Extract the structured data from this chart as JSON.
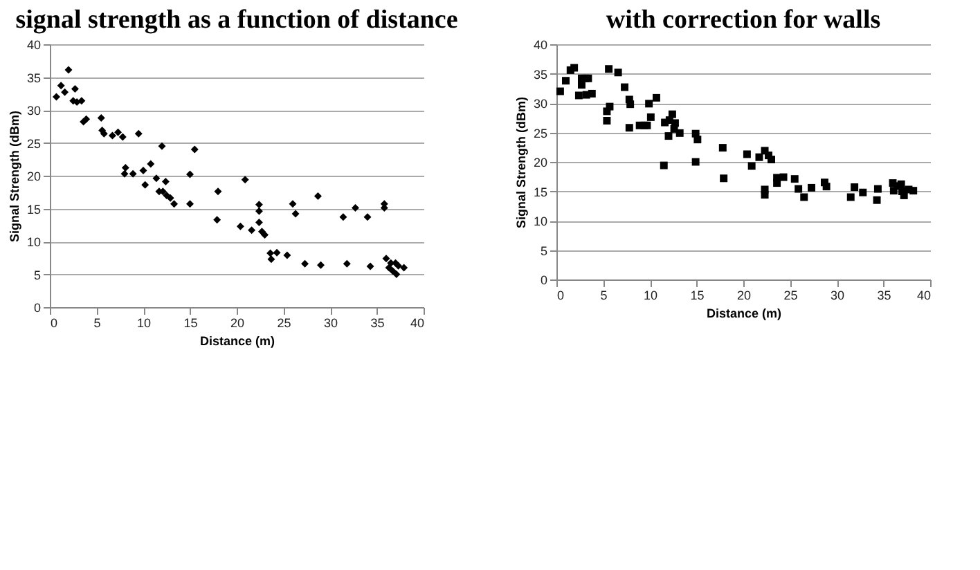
{
  "chart_data": [
    {
      "type": "scatter",
      "title": "signal strength as a function of distance",
      "xlabel": "Distance (m)",
      "ylabel": "Signal Strength (dBm)",
      "xlim": [
        0,
        40
      ],
      "xticks": [
        0,
        5,
        10,
        15,
        20,
        25,
        30,
        35,
        40
      ],
      "ylim": [
        0,
        40
      ],
      "yticks": [
        0,
        5,
        10,
        15,
        20,
        25,
        30,
        35,
        40
      ],
      "grid": "y",
      "marker": "diamond",
      "series": [
        {
          "color": "#000000",
          "x": [
            0.7,
            1.2,
            1.6,
            2.0,
            2.7,
            2.5,
            2.9,
            3.4,
            3.6,
            3.9,
            5.5,
            5.6,
            5.8,
            6.7,
            7.3,
            7.8,
            9.5,
            8.1,
            8.0,
            8.9,
            10.0,
            10.2,
            10.8,
            11.4,
            12.0,
            11.7,
            12.1,
            12.4,
            12.5,
            12.9,
            13.3,
            15.0,
            15.5,
            15.0,
            18.0,
            17.9,
            20.4,
            20.9,
            21.6,
            22.4,
            22.4,
            22.4,
            22.7,
            23.0,
            23.6,
            23.7,
            24.3,
            25.4,
            26.0,
            26.3,
            27.3,
            28.7,
            29.0,
            31.4,
            31.8,
            32.7,
            34.0,
            34.3,
            35.8,
            35.8,
            36.0,
            36.3,
            36.5,
            36.7,
            37.0,
            37.1,
            37.3,
            37.9
          ],
          "values": [
            32.0,
            33.7,
            32.7,
            36.1,
            33.2,
            31.4,
            31.2,
            31.4,
            28.2,
            28.6,
            28.8,
            26.9,
            26.4,
            26.1,
            26.6,
            25.9,
            26.4,
            21.2,
            20.3,
            20.3,
            20.8,
            18.6,
            21.8,
            19.6,
            24.5,
            17.6,
            17.6,
            19.1,
            17.0,
            16.6,
            15.7,
            20.2,
            24.0,
            15.7,
            17.6,
            13.3,
            12.3,
            19.4,
            11.7,
            15.6,
            14.6,
            12.9,
            11.5,
            11.0,
            8.2,
            7.3,
            8.3,
            7.9,
            15.7,
            14.2,
            6.6,
            16.9,
            6.4,
            13.7,
            6.6,
            15.1,
            13.7,
            6.2,
            15.7,
            15.1,
            7.4,
            6.0,
            6.7,
            5.5,
            6.7,
            5.0,
            6.3,
            6.0
          ]
        }
      ]
    },
    {
      "type": "scatter",
      "title": "with correction for walls",
      "xlabel": "Distance (m)",
      "ylabel": "Signal Strength (dBm)",
      "xlim": [
        0,
        40
      ],
      "xticks": [
        0,
        5,
        10,
        15,
        20,
        25,
        30,
        35,
        40
      ],
      "ylim": [
        0,
        40
      ],
      "yticks": [
        0,
        5,
        10,
        15,
        20,
        25,
        30,
        35,
        40
      ],
      "grid": "y",
      "marker": "square",
      "series": [
        {
          "color": "#000000",
          "x": [
            0.4,
            1.0,
            1.5,
            1.9,
            2.4,
            2.7,
            2.7,
            3.1,
            3.4,
            3.2,
            3.8,
            5.4,
            5.4,
            5.6,
            5.7,
            6.6,
            7.3,
            7.8,
            7.9,
            7.8,
            8.9,
            9.4,
            9.7,
            9.9,
            10.1,
            10.7,
            11.5,
            11.6,
            12.0,
            12.1,
            12.4,
            12.6,
            12.7,
            13.2,
            14.9,
            15.1,
            14.9,
            17.8,
            17.9,
            20.4,
            20.9,
            21.7,
            22.3,
            22.3,
            22.3,
            22.7,
            23.0,
            23.6,
            23.6,
            24.3,
            25.5,
            25.9,
            26.5,
            27.3,
            28.7,
            28.9,
            31.5,
            31.9,
            32.8,
            34.3,
            34.4,
            36.0,
            36.1,
            36.5,
            36.9,
            37.0,
            37.2,
            37.7,
            38.2
          ],
          "values": [
            32.0,
            33.8,
            35.6,
            36.0,
            31.3,
            33.1,
            34.2,
            34.2,
            34.2,
            31.4,
            31.6,
            28.6,
            27.0,
            35.8,
            29.4,
            35.2,
            32.7,
            30.6,
            29.8,
            25.8,
            26.2,
            26.2,
            26.2,
            29.9,
            27.6,
            30.9,
            19.4,
            26.7,
            24.4,
            27.1,
            28.1,
            25.6,
            26.6,
            24.9,
            24.8,
            23.8,
            20.0,
            22.4,
            17.2,
            21.3,
            19.3,
            20.8,
            21.9,
            15.3,
            14.4,
            21.1,
            20.4,
            17.3,
            16.4,
            17.4,
            17.1,
            15.4,
            14.0,
            15.6,
            16.5,
            15.8,
            14.0,
            15.7,
            14.8,
            13.5,
            15.4,
            16.4,
            15.1,
            15.9,
            16.2,
            15.0,
            14.3,
            15.3,
            15.1
          ]
        }
      ]
    }
  ]
}
